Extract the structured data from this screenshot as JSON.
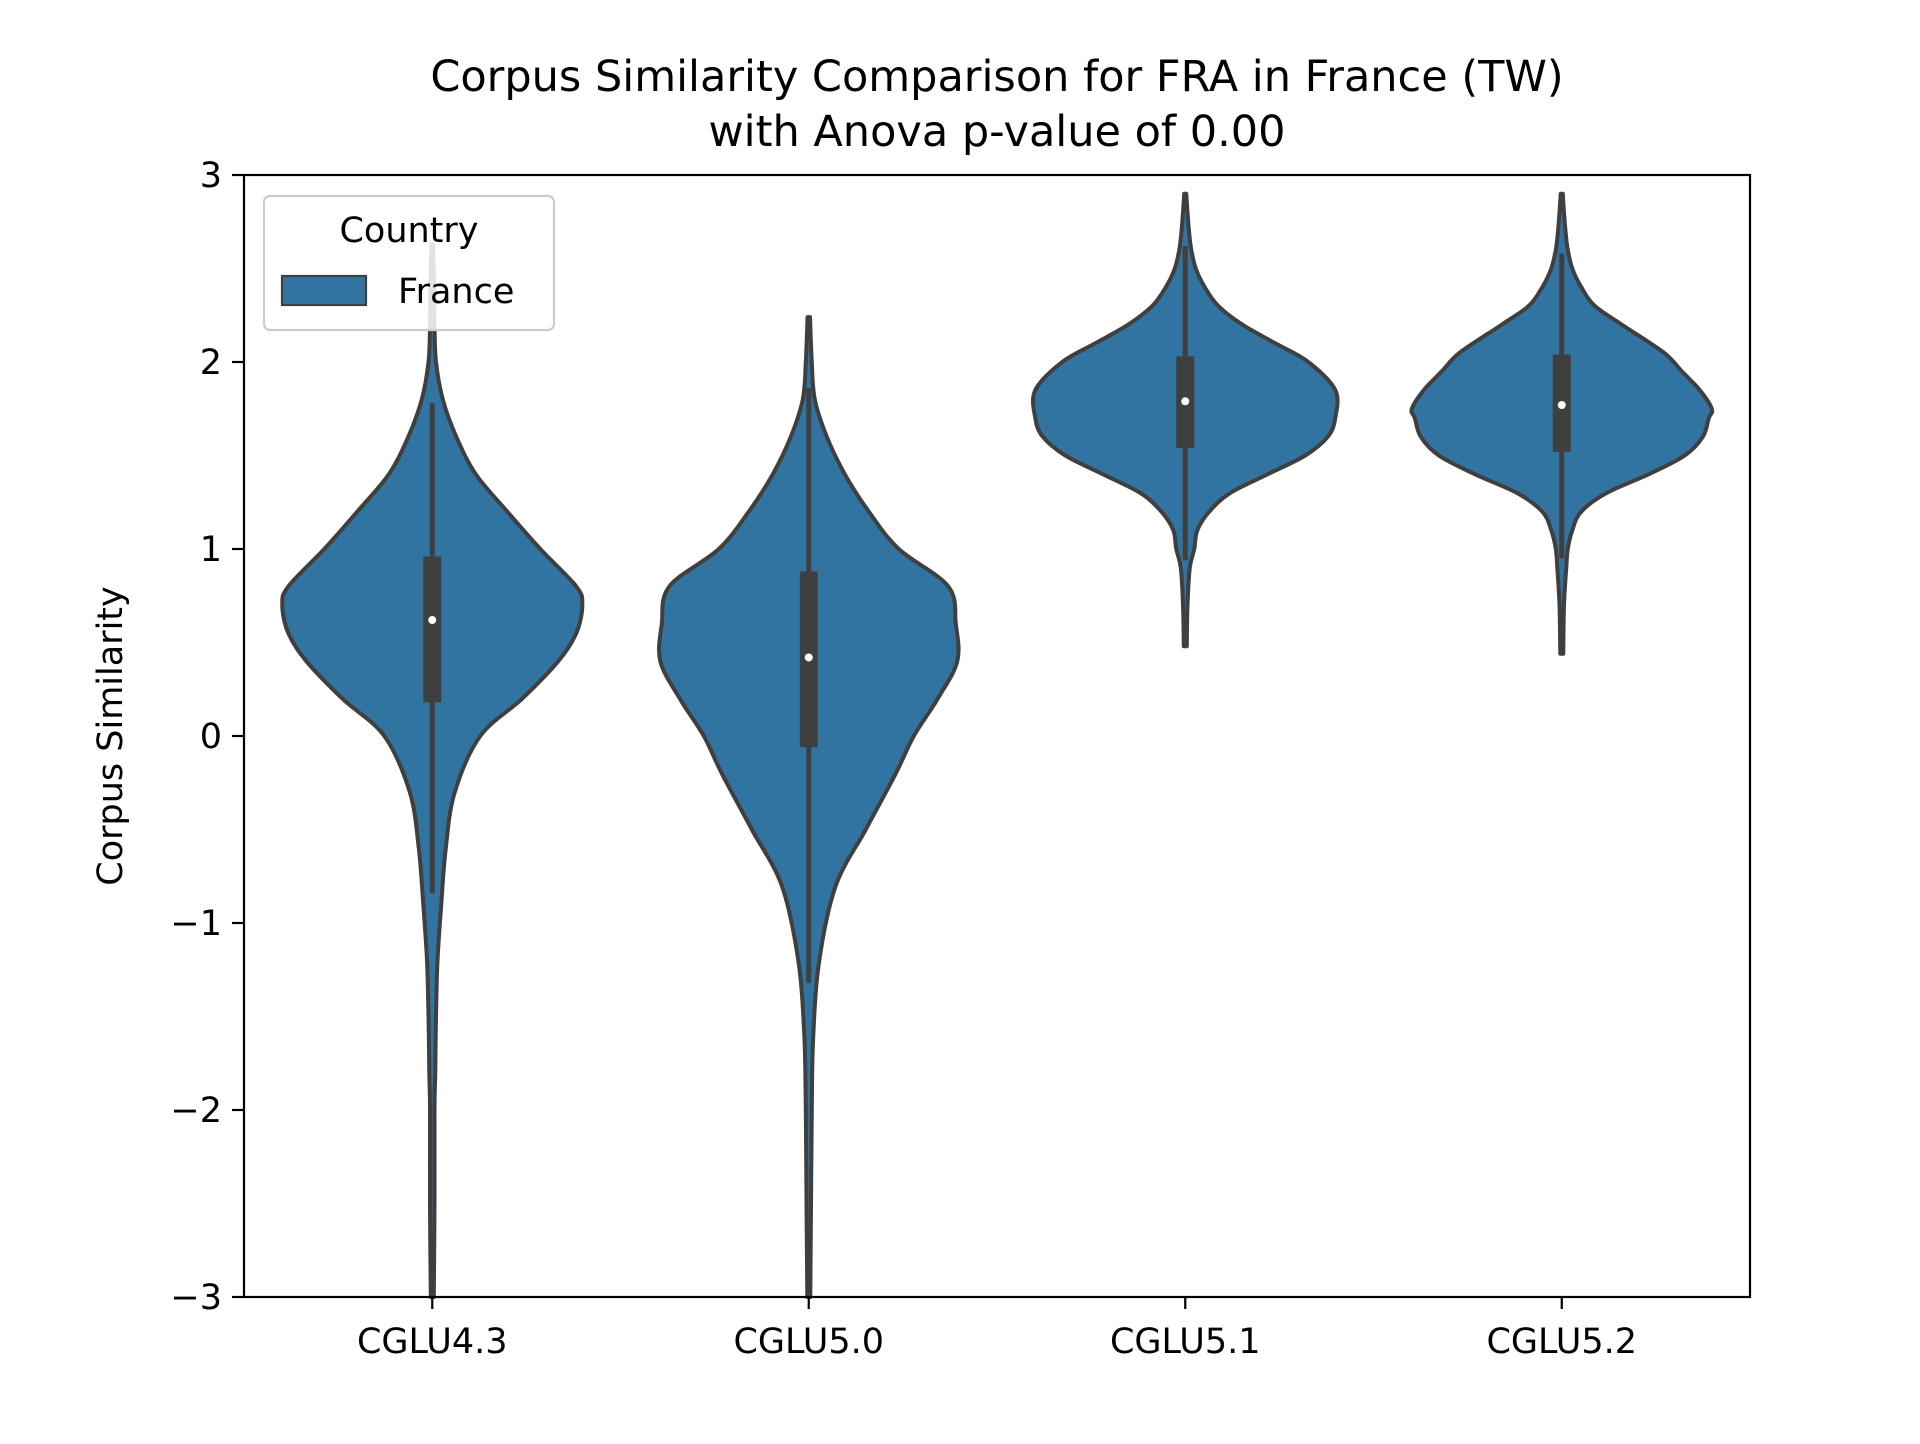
{
  "chart_data": {
    "type": "violin",
    "title": [
      "Corpus Similarity Comparison for FRA in France (TW)",
      "with Anova p-value of 0.00"
    ],
    "xlabel": "",
    "ylabel": "Corpus Similarity",
    "ylim": [
      -3,
      3
    ],
    "yticks": [
      -3,
      -2,
      -1,
      0,
      1,
      2,
      3
    ],
    "ytick_labels": [
      "−3",
      "−2",
      "−1",
      "0",
      "1",
      "2",
      "3"
    ],
    "categories": [
      "CGLU4.3",
      "CGLU5.0",
      "CGLU5.1",
      "CGLU5.2"
    ],
    "grid": false,
    "legend": {
      "title": "Country",
      "placement": "upper-left",
      "entries": [
        {
          "label": "France",
          "color": "#3274a1"
        }
      ]
    },
    "colors": {
      "fill": "#3274a1",
      "edge": "#3f3f3f",
      "median": "#ffffff"
    },
    "series": [
      {
        "name": "France",
        "violins": [
          {
            "category": "CGLU4.3",
            "median": 0.62,
            "q1": 0.18,
            "q3": 0.96,
            "whisker_low": -0.84,
            "whisker_high": 1.78,
            "profile": [
              [
                -3.0,
                0.01
              ],
              [
                -2.5,
                0.015
              ],
              [
                -2.0,
                0.015
              ],
              [
                -1.8,
                0.02
              ],
              [
                -1.5,
                0.025
              ],
              [
                -1.2,
                0.035
              ],
              [
                -0.9,
                0.06
              ],
              [
                -0.6,
                0.09
              ],
              [
                -0.3,
                0.15
              ],
              [
                0.0,
                0.32
              ],
              [
                0.2,
                0.6
              ],
              [
                0.4,
                0.84
              ],
              [
                0.55,
                0.96
              ],
              [
                0.7,
                1.0
              ],
              [
                0.8,
                0.96
              ],
              [
                1.0,
                0.72
              ],
              [
                1.2,
                0.5
              ],
              [
                1.4,
                0.29
              ],
              [
                1.6,
                0.16
              ],
              [
                1.8,
                0.07
              ],
              [
                2.0,
                0.025
              ],
              [
                2.2,
                0.015
              ],
              [
                2.4,
                0.012
              ],
              [
                2.63,
                0.006
              ]
            ]
          },
          {
            "category": "CGLU5.0",
            "median": 0.42,
            "q1": -0.06,
            "q3": 0.88,
            "whisker_low": -1.32,
            "whisker_high": 1.86,
            "profile": [
              [
                -3.0,
                0.01
              ],
              [
                -2.5,
                0.015
              ],
              [
                -2.0,
                0.02
              ],
              [
                -1.6,
                0.03
              ],
              [
                -1.2,
                0.07
              ],
              [
                -0.8,
                0.18
              ],
              [
                -0.5,
                0.38
              ],
              [
                -0.2,
                0.58
              ],
              [
                0.0,
                0.7
              ],
              [
                0.2,
                0.86
              ],
              [
                0.4,
                0.99
              ],
              [
                0.6,
                0.98
              ],
              [
                0.8,
                0.93
              ],
              [
                1.0,
                0.6
              ],
              [
                1.2,
                0.4
              ],
              [
                1.4,
                0.24
              ],
              [
                1.6,
                0.12
              ],
              [
                1.8,
                0.04
              ],
              [
                2.0,
                0.02
              ],
              [
                2.24,
                0.008
              ]
            ]
          },
          {
            "category": "CGLU5.1",
            "median": 1.79,
            "q1": 1.54,
            "q3": 2.03,
            "whisker_low": 0.94,
            "whisker_high": 2.62,
            "profile": [
              [
                0.48,
                0.01
              ],
              [
                0.7,
                0.015
              ],
              [
                0.9,
                0.03
              ],
              [
                1.0,
                0.06
              ],
              [
                1.1,
                0.08
              ],
              [
                1.2,
                0.16
              ],
              [
                1.3,
                0.3
              ],
              [
                1.4,
                0.55
              ],
              [
                1.5,
                0.8
              ],
              [
                1.6,
                0.95
              ],
              [
                1.7,
                1.0
              ],
              [
                1.85,
                1.0
              ],
              [
                2.0,
                0.82
              ],
              [
                2.1,
                0.6
              ],
              [
                2.2,
                0.38
              ],
              [
                2.3,
                0.22
              ],
              [
                2.4,
                0.13
              ],
              [
                2.5,
                0.07
              ],
              [
                2.6,
                0.04
              ],
              [
                2.7,
                0.025
              ],
              [
                2.8,
                0.015
              ],
              [
                2.9,
                0.007
              ]
            ]
          },
          {
            "category": "CGLU5.2",
            "median": 1.77,
            "q1": 1.52,
            "q3": 2.04,
            "whisker_low": 0.95,
            "whisker_high": 2.58,
            "profile": [
              [
                0.44,
                0.01
              ],
              [
                0.7,
                0.015
              ],
              [
                0.9,
                0.03
              ],
              [
                1.0,
                0.04
              ],
              [
                1.1,
                0.07
              ],
              [
                1.2,
                0.13
              ],
              [
                1.3,
                0.3
              ],
              [
                1.4,
                0.58
              ],
              [
                1.5,
                0.82
              ],
              [
                1.6,
                0.94
              ],
              [
                1.7,
                0.98
              ],
              [
                1.75,
                1.0
              ],
              [
                1.85,
                0.92
              ],
              [
                1.95,
                0.8
              ],
              [
                2.05,
                0.68
              ],
              [
                2.2,
                0.4
              ],
              [
                2.3,
                0.22
              ],
              [
                2.4,
                0.13
              ],
              [
                2.5,
                0.07
              ],
              [
                2.6,
                0.04
              ],
              [
                2.7,
                0.025
              ],
              [
                2.8,
                0.015
              ],
              [
                2.9,
                0.007
              ]
            ]
          }
        ]
      }
    ]
  }
}
